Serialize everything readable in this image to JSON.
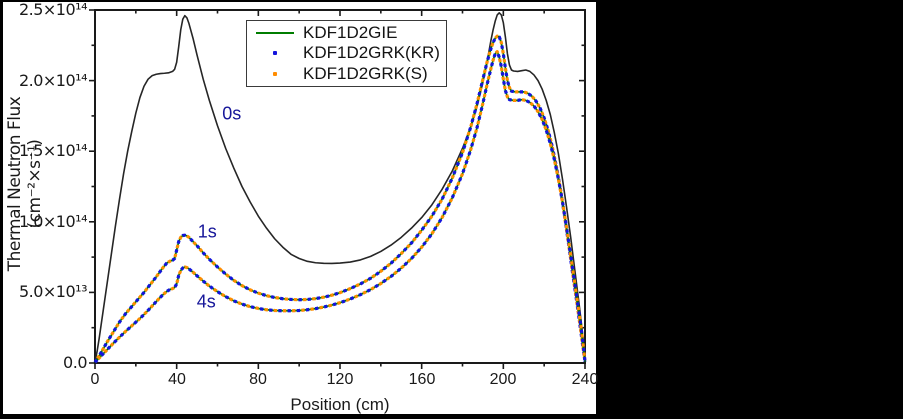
{
  "figure": {
    "kind": "scientific-line-plot",
    "background": "#000000",
    "panel_background": "#ffffff",
    "axis_color": "#1a1a1a"
  },
  "chart_data": {
    "type": "line",
    "title": "",
    "xlabel": "Position (cm)",
    "ylabel": "Thermal Neutron Flux (cm⁻²×s⁻¹)",
    "xlim": [
      0,
      240
    ],
    "ylim": [
      0,
      250000000000000.0
    ],
    "grid": false,
    "x_major_ticks": [
      0,
      40,
      80,
      120,
      160,
      200,
      240
    ],
    "x_tick_labels": [
      "0",
      "40",
      "80",
      "120",
      "160",
      "200",
      "240"
    ],
    "x_minor_ticks": [
      20,
      60,
      100,
      140,
      180,
      220
    ],
    "y_major_ticks_1e13": [
      0,
      50,
      100,
      150,
      200,
      250
    ],
    "y_tick_labels": [
      "0.0",
      "5.0×10¹³",
      "1.0×10¹⁴",
      "1.5×10¹⁴",
      "2.0×10¹⁴",
      "2.5×10¹⁴"
    ],
    "y_minor_ticks_1e13": [
      25,
      75,
      125,
      175,
      225
    ],
    "units_note": "series points are [position_cm, flux_in_1e13_cm-2_s-1]",
    "legend": {
      "position": "top-center",
      "entries": [
        {
          "label": "KDF1D2GIE",
          "marker": "line",
          "color": "#007d00"
        },
        {
          "label": "KDF1D2GRK(KR)",
          "marker": "dot",
          "color": "#1414dc"
        },
        {
          "label": "KDF1D2GRK(S)",
          "marker": "dot",
          "color": "#ff8c00"
        }
      ]
    },
    "annotations": [
      {
        "text": "0s",
        "x_cm": 67,
        "y_1e13": 176,
        "color": "#17179a"
      },
      {
        "text": "1s",
        "x_cm": 55,
        "y_1e13": 93,
        "color": "#17179a"
      },
      {
        "text": "4s",
        "x_cm": 54.5,
        "y_1e13": 43,
        "color": "#17179a"
      }
    ],
    "series": [
      {
        "name": "0s (initial flux)",
        "style": "solid",
        "color": "#262626",
        "width": 1.6,
        "points": [
          [
            0,
            1
          ],
          [
            1,
            8
          ],
          [
            2,
            17
          ],
          [
            3,
            27
          ],
          [
            4,
            37
          ],
          [
            5,
            47
          ],
          [
            6,
            57
          ],
          [
            8,
            77
          ],
          [
            10,
            97
          ],
          [
            12,
            116
          ],
          [
            14,
            134
          ],
          [
            16,
            150
          ],
          [
            18,
            164
          ],
          [
            20,
            177
          ],
          [
            22,
            188
          ],
          [
            24,
            196
          ],
          [
            26,
            201
          ],
          [
            28,
            203.5
          ],
          [
            30,
            204.5
          ],
          [
            32,
            205
          ],
          [
            34,
            205.2
          ],
          [
            36,
            205.5
          ],
          [
            38,
            206.5
          ],
          [
            39,
            208
          ],
          [
            40,
            213
          ],
          [
            41,
            224
          ],
          [
            42,
            236
          ],
          [
            43,
            243.5
          ],
          [
            44,
            246
          ],
          [
            45,
            244.5
          ],
          [
            46,
            240.5
          ],
          [
            48,
            230
          ],
          [
            50,
            218
          ],
          [
            53,
            201
          ],
          [
            56,
            186
          ],
          [
            60,
            168
          ],
          [
            64,
            152
          ],
          [
            68,
            138
          ],
          [
            72,
            125
          ],
          [
            76,
            114
          ],
          [
            80,
            104
          ],
          [
            84,
            95.5
          ],
          [
            88,
            88
          ],
          [
            92,
            82
          ],
          [
            96,
            77
          ],
          [
            100,
            74
          ],
          [
            104,
            72
          ],
          [
            108,
            71
          ],
          [
            112,
            70.6
          ],
          [
            116,
            70.5
          ],
          [
            120,
            70.8
          ],
          [
            125,
            71.5
          ],
          [
            130,
            73
          ],
          [
            135,
            75.5
          ],
          [
            140,
            79
          ],
          [
            145,
            83.5
          ],
          [
            150,
            89
          ],
          [
            155,
            95.5
          ],
          [
            160,
            103
          ],
          [
            165,
            112
          ],
          [
            170,
            123
          ],
          [
            175,
            136
          ],
          [
            180,
            152
          ],
          [
            184,
            167
          ],
          [
            187,
            181
          ],
          [
            190,
            199
          ],
          [
            192,
            213
          ],
          [
            194,
            229
          ],
          [
            195,
            236
          ],
          [
            196,
            242
          ],
          [
            197,
            246.5
          ],
          [
            198,
            248
          ],
          [
            199,
            246.5
          ],
          [
            200,
            241
          ],
          [
            201,
            231
          ],
          [
            202,
            219
          ],
          [
            203,
            211
          ],
          [
            204,
            207.5
          ],
          [
            205,
            206.8
          ],
          [
            207,
            206.5
          ],
          [
            209,
            207
          ],
          [
            211,
            207.5
          ],
          [
            213,
            206.5
          ],
          [
            215,
            204
          ],
          [
            217,
            200
          ],
          [
            219,
            194
          ],
          [
            221,
            186
          ],
          [
            223,
            176
          ],
          [
            225,
            163
          ],
          [
            227,
            148
          ],
          [
            229,
            130
          ],
          [
            231,
            110
          ],
          [
            233,
            89
          ],
          [
            235,
            66
          ],
          [
            237,
            43
          ],
          [
            238,
            31
          ],
          [
            239,
            18
          ],
          [
            240,
            2
          ]
        ]
      },
      {
        "name": "1s (KDF1D2GIE line + KDF1D2GRK(KR)/(S) dots, overlapping)",
        "style": "line-with-alternating-dots",
        "line_color": "#007d00",
        "dot_colors": [
          "#1414dc",
          "#ff8c00"
        ],
        "width": 3.2,
        "points": [
          [
            0,
            0.5
          ],
          [
            2,
            5
          ],
          [
            4,
            10
          ],
          [
            6,
            15
          ],
          [
            9,
            22
          ],
          [
            12,
            29
          ],
          [
            15,
            35
          ],
          [
            18,
            40
          ],
          [
            21,
            45
          ],
          [
            24,
            50
          ],
          [
            27,
            55.5
          ],
          [
            30,
            61
          ],
          [
            33,
            67
          ],
          [
            35,
            70.5
          ],
          [
            36,
            71.5
          ],
          [
            37,
            72.3
          ],
          [
            38,
            72.8
          ],
          [
            39,
            74
          ],
          [
            40,
            80
          ],
          [
            41,
            86
          ],
          [
            42,
            89
          ],
          [
            43,
            90.3
          ],
          [
            44,
            90.5
          ],
          [
            45,
            90
          ],
          [
            46,
            89
          ],
          [
            48,
            86
          ],
          [
            50,
            83
          ],
          [
            53,
            78
          ],
          [
            56,
            73.5
          ],
          [
            60,
            68
          ],
          [
            64,
            63
          ],
          [
            68,
            58.5
          ],
          [
            72,
            54.8
          ],
          [
            76,
            51.8
          ],
          [
            80,
            49.5
          ],
          [
            84,
            47.7
          ],
          [
            88,
            46.4
          ],
          [
            92,
            45.5
          ],
          [
            96,
            45
          ],
          [
            100,
            44.8
          ],
          [
            104,
            45
          ],
          [
            108,
            45.6
          ],
          [
            112,
            46.6
          ],
          [
            116,
            48
          ],
          [
            120,
            49.8
          ],
          [
            125,
            52.7
          ],
          [
            130,
            56
          ],
          [
            135,
            60
          ],
          [
            140,
            65
          ],
          [
            145,
            70.7
          ],
          [
            150,
            77.5
          ],
          [
            155,
            85
          ],
          [
            160,
            94
          ],
          [
            165,
            104
          ],
          [
            170,
            116
          ],
          [
            175,
            131
          ],
          [
            180,
            149
          ],
          [
            184,
            167
          ],
          [
            187,
            183
          ],
          [
            190,
            201
          ],
          [
            192,
            213
          ],
          [
            194,
            223
          ],
          [
            195,
            227
          ],
          [
            196,
            230
          ],
          [
            197,
            231.5
          ],
          [
            198,
            231
          ],
          [
            199,
            227
          ],
          [
            200,
            219
          ],
          [
            201,
            209
          ],
          [
            202,
            200
          ],
          [
            203,
            195
          ],
          [
            204,
            192.5
          ],
          [
            206,
            192
          ],
          [
            208,
            192
          ],
          [
            210,
            192
          ],
          [
            212,
            191
          ],
          [
            214,
            189
          ],
          [
            216,
            185.5
          ],
          [
            218,
            180.5
          ],
          [
            220,
            173.5
          ],
          [
            222,
            164.5
          ],
          [
            224,
            153
          ],
          [
            226,
            139
          ],
          [
            228,
            123
          ],
          [
            230,
            104
          ],
          [
            232,
            84
          ],
          [
            234,
            63
          ],
          [
            236,
            43
          ],
          [
            238,
            22
          ],
          [
            239,
            11
          ],
          [
            240,
            1
          ]
        ]
      },
      {
        "name": "4s (KDF1D2GIE line + KDF1D2GRK(KR)/(S) dots, overlapping)",
        "style": "line-with-alternating-dots",
        "line_color": "#007d00",
        "dot_colors": [
          "#1414dc",
          "#ff8c00"
        ],
        "width": 3.2,
        "points": [
          [
            0,
            0.5
          ],
          [
            3,
            5
          ],
          [
            6,
            9.5
          ],
          [
            9,
            14
          ],
          [
            12,
            18.3
          ],
          [
            15,
            22.4
          ],
          [
            18,
            26.3
          ],
          [
            21,
            30.2
          ],
          [
            24,
            34.3
          ],
          [
            27,
            38.8
          ],
          [
            30,
            43.5
          ],
          [
            33,
            48
          ],
          [
            35,
            50.5
          ],
          [
            36,
            51.5
          ],
          [
            37,
            52.2
          ],
          [
            38,
            52.7
          ],
          [
            39,
            53.5
          ],
          [
            40,
            56
          ],
          [
            41,
            62
          ],
          [
            42,
            65.5
          ],
          [
            43,
            67.3
          ],
          [
            44,
            68
          ],
          [
            45,
            67.6
          ],
          [
            46,
            66.7
          ],
          [
            48,
            64.3
          ],
          [
            50,
            61.7
          ],
          [
            53,
            58
          ],
          [
            56,
            54.5
          ],
          [
            60,
            50.5
          ],
          [
            64,
            47
          ],
          [
            68,
            44
          ],
          [
            72,
            41.7
          ],
          [
            76,
            39.9
          ],
          [
            80,
            38.6
          ],
          [
            84,
            37.7
          ],
          [
            88,
            37.2
          ],
          [
            92,
            37
          ],
          [
            96,
            37
          ],
          [
            100,
            37.2
          ],
          [
            104,
            37.7
          ],
          [
            108,
            38.5
          ],
          [
            112,
            39.6
          ],
          [
            116,
            41
          ],
          [
            120,
            42.7
          ],
          [
            125,
            45.3
          ],
          [
            130,
            48.4
          ],
          [
            135,
            52
          ],
          [
            140,
            56.3
          ],
          [
            145,
            61.3
          ],
          [
            150,
            67.2
          ],
          [
            155,
            74
          ],
          [
            160,
            82
          ],
          [
            165,
            91.5
          ],
          [
            170,
            103
          ],
          [
            175,
            117
          ],
          [
            180,
            134
          ],
          [
            184,
            151
          ],
          [
            187,
            166
          ],
          [
            190,
            184
          ],
          [
            192,
            197
          ],
          [
            194,
            209
          ],
          [
            195,
            214.5
          ],
          [
            196,
            219
          ],
          [
            197,
            220.5
          ],
          [
            198,
            216.5
          ],
          [
            199,
            210
          ],
          [
            200,
            201
          ],
          [
            201,
            193
          ],
          [
            202,
            188.5
          ],
          [
            203,
            186.5
          ],
          [
            205,
            186
          ],
          [
            207,
            186
          ],
          [
            209,
            186.5
          ],
          [
            211,
            186
          ],
          [
            213,
            184.5
          ],
          [
            215,
            182
          ],
          [
            217,
            178
          ],
          [
            219,
            172.5
          ],
          [
            221,
            165
          ],
          [
            223,
            155.5
          ],
          [
            225,
            144
          ],
          [
            227,
            130
          ],
          [
            229,
            114
          ],
          [
            231,
            95.5
          ],
          [
            233,
            76
          ],
          [
            235,
            56
          ],
          [
            237,
            36
          ],
          [
            238,
            26
          ],
          [
            239,
            14
          ],
          [
            240,
            1
          ]
        ]
      }
    ]
  }
}
